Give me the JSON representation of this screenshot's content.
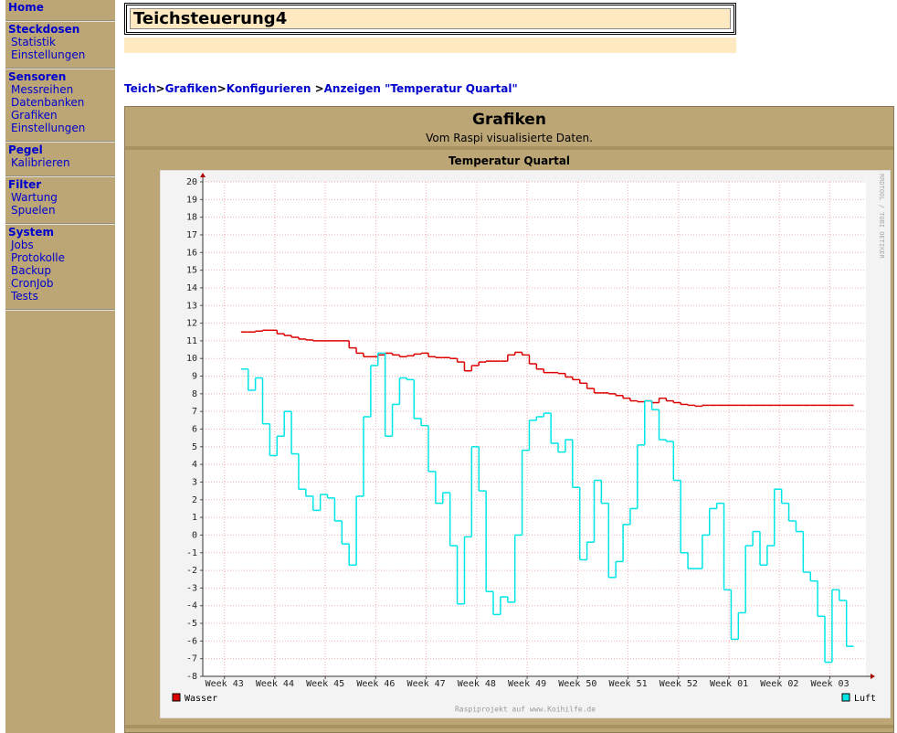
{
  "sidebar": [
    {
      "title": "Home",
      "items": []
    },
    {
      "title": "Steckdosen",
      "items": [
        "Statistik",
        "Einstellungen"
      ]
    },
    {
      "title": "Sensoren",
      "items": [
        "Messreihen",
        "Datenbanken",
        "Grafiken",
        "Einstellungen"
      ]
    },
    {
      "title": "Pegel",
      "items": [
        "Kalibrieren"
      ]
    },
    {
      "title": "Filter",
      "items": [
        "Wartung",
        "Spuelen"
      ]
    },
    {
      "title": "System",
      "items": [
        "Jobs",
        "Protokolle",
        "Backup",
        "CronJob",
        "Tests"
      ]
    }
  ],
  "header": {
    "title": "Teichsteuerung4"
  },
  "breadcrumb": {
    "items": [
      "Teich",
      "Grafiken",
      "Konfigurieren",
      "Anzeigen \"Temperatur Quartal\""
    ],
    "separators": [
      ">",
      ">",
      " >"
    ]
  },
  "panel": {
    "title": "Grafiken",
    "subtitle": "Vom Raspi visualisierte Daten."
  },
  "chart_data": {
    "type": "line",
    "title": "Temperatur Quartal",
    "watermark": "RRDTOOL / TOBI OETIKER",
    "footer": "Raspiprojekt auf www.Koihilfe.de",
    "xlim": [
      -3,
      89
    ],
    "ylim": [
      -8,
      20
    ],
    "xticks": [
      {
        "value": 0,
        "label": "Week 43"
      },
      {
        "value": 7,
        "label": "Week 44"
      },
      {
        "value": 14,
        "label": "Week 45"
      },
      {
        "value": 21,
        "label": "Week 46"
      },
      {
        "value": 28,
        "label": "Week 47"
      },
      {
        "value": 35,
        "label": "Week 48"
      },
      {
        "value": 42,
        "label": "Week 49"
      },
      {
        "value": 49,
        "label": "Week 50"
      },
      {
        "value": 56,
        "label": "Week 51"
      },
      {
        "value": 63,
        "label": "Week 52"
      },
      {
        "value": 70,
        "label": "Week 01"
      },
      {
        "value": 77,
        "label": "Week 02"
      },
      {
        "value": 84,
        "label": "Week 03"
      }
    ],
    "yticks": [
      -8,
      -7,
      -6,
      -5,
      -4,
      -3,
      -2,
      -1,
      0,
      1,
      2,
      3,
      4,
      5,
      6,
      7,
      8,
      9,
      10,
      11,
      12,
      13,
      14,
      15,
      16,
      17,
      18,
      19,
      20
    ],
    "grid": true,
    "x": [
      2.3,
      3.3,
      4.3,
      5.3,
      6.3,
      7.3,
      8.3,
      9.3,
      10.3,
      11.3,
      12.3,
      13.3,
      14.3,
      15.3,
      16.3,
      17.3,
      18.3,
      19.3,
      20.3,
      21.3,
      22.3,
      23.3,
      24.3,
      25.3,
      26.3,
      27.3,
      28.3,
      29.3,
      30.3,
      31.3,
      32.3,
      33.3,
      34.3,
      35.3,
      36.3,
      37.3,
      38.3,
      39.3,
      40.3,
      41.3,
      42.3,
      43.3,
      44.3,
      45.3,
      46.3,
      47.3,
      48.3,
      49.3,
      50.3,
      51.3,
      52.3,
      53.3,
      54.3,
      55.3,
      56.3,
      57.3,
      58.3,
      59.3,
      60.3,
      61.3,
      62.3,
      63.3,
      64.3,
      65.3,
      66.3,
      67.3,
      68.3,
      69.3,
      70.3,
      71.3,
      72.3,
      73.3,
      74.3,
      75.3,
      76.3,
      77.3,
      78.3,
      79.3,
      80.3,
      81.3,
      82.3,
      83.3,
      84.3,
      85.3,
      86.3
    ],
    "series": [
      {
        "name": "Wasser",
        "color": "#dd0000",
        "values": [
          11.5,
          11.5,
          11.55,
          11.6,
          11.6,
          11.4,
          11.3,
          11.2,
          11.1,
          11.05,
          11.0,
          11.0,
          11.0,
          11.0,
          11.0,
          10.6,
          10.3,
          10.1,
          10.1,
          10.2,
          10.3,
          10.2,
          10.1,
          10.15,
          10.25,
          10.3,
          10.1,
          10.05,
          10.05,
          10.0,
          9.8,
          9.3,
          9.6,
          9.8,
          9.85,
          9.85,
          9.85,
          10.2,
          10.35,
          10.2,
          9.7,
          9.4,
          9.2,
          9.2,
          9.15,
          8.95,
          8.8,
          8.6,
          8.3,
          8.05,
          8.05,
          8.0,
          7.9,
          7.75,
          7.6,
          7.55,
          7.6,
          7.5,
          7.75,
          7.6,
          7.5,
          7.4,
          7.35,
          7.3,
          7.35,
          7.35,
          7.35,
          7.35,
          7.35,
          7.35,
          7.35,
          7.35,
          7.35,
          7.35,
          7.35,
          7.35,
          7.35,
          7.35,
          7.35,
          7.35,
          7.35,
          7.35,
          7.35,
          7.35,
          7.35
        ]
      },
      {
        "name": "Luft",
        "color": "#00e6e6",
        "values": [
          9.4,
          8.2,
          8.9,
          6.3,
          4.5,
          5.6,
          7.0,
          4.6,
          2.6,
          2.2,
          1.4,
          2.3,
          2.1,
          0.8,
          -0.5,
          -1.7,
          2.2,
          6.7,
          9.6,
          10.3,
          5.6,
          7.4,
          8.9,
          8.8,
          6.6,
          6.2,
          3.6,
          1.8,
          2.4,
          -0.6,
          -3.9,
          -0.1,
          5.0,
          2.5,
          -3.2,
          -4.5,
          -3.5,
          -3.8,
          0.0,
          4.8,
          6.5,
          6.7,
          6.9,
          5.2,
          4.7,
          5.4,
          2.7,
          -1.4,
          -0.4,
          3.1,
          1.8,
          -2.4,
          -1.5,
          0.6,
          1.5,
          5.1,
          7.6,
          7.1,
          5.4,
          5.3,
          3.1,
          -1.0,
          -1.9,
          -1.9,
          0.0,
          1.5,
          1.8,
          -3.1,
          -5.9,
          -4.4,
          -0.6,
          0.2,
          -1.7,
          -0.6,
          2.6,
          1.8,
          0.8,
          0.2,
          -2.1,
          -2.6,
          -4.6,
          -7.2,
          -3.1,
          -3.7,
          -6.3
        ]
      }
    ]
  }
}
